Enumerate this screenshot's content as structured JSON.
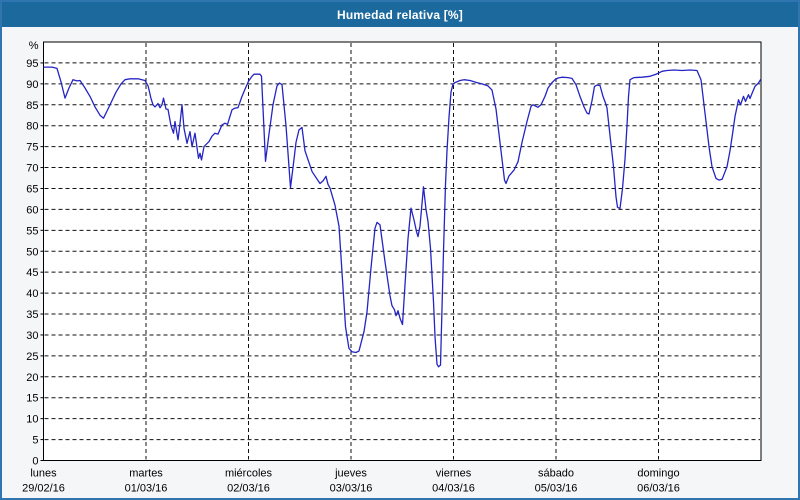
{
  "window": {
    "title": "Humedad relativa [%]"
  },
  "colors": {
    "header_bg": "#1c699e",
    "frame": "#2f75b0",
    "content_bg": "#f5f6f8",
    "plot_bg": "#ffffff",
    "grid": "#111111",
    "axis": "#000000",
    "line": "#2424c4"
  },
  "chart_data": {
    "type": "line",
    "title": "Humedad relativa [%]",
    "grid": "dashed",
    "legend": "none",
    "y_axis": {
      "unit_label": "%",
      "min": 0,
      "max": 100,
      "tick_step": 5,
      "ticks": [
        0,
        5,
        10,
        15,
        20,
        25,
        30,
        35,
        40,
        45,
        50,
        55,
        60,
        65,
        70,
        75,
        80,
        85,
        90,
        95
      ]
    },
    "x_axis": {
      "min": 0,
      "max": 7,
      "days": [
        {
          "name": "lunes",
          "date": "29/02/16"
        },
        {
          "name": "martes",
          "date": "01/03/16"
        },
        {
          "name": "miércoles",
          "date": "02/03/16"
        },
        {
          "name": "jueves",
          "date": "03/03/16"
        },
        {
          "name": "viernes",
          "date": "04/03/16"
        },
        {
          "name": "sábado",
          "date": "05/03/16"
        },
        {
          "name": "domingo",
          "date": "06/03/16"
        }
      ]
    },
    "series": [
      {
        "name": "Humedad relativa",
        "color": "#2424c4",
        "points": [
          [
            0.005,
            94
          ],
          [
            0.083,
            94
          ],
          [
            0.132,
            93.7
          ],
          [
            0.171,
            90.5
          ],
          [
            0.21,
            86.6
          ],
          [
            0.249,
            89
          ],
          [
            0.288,
            91
          ],
          [
            0.327,
            90.7
          ],
          [
            0.356,
            90.8
          ],
          [
            0.405,
            89
          ],
          [
            0.454,
            87
          ],
          [
            0.502,
            84.5
          ],
          [
            0.551,
            82.5
          ],
          [
            0.585,
            81.8
          ],
          [
            0.629,
            84
          ],
          [
            0.668,
            86
          ],
          [
            0.707,
            88
          ],
          [
            0.756,
            90
          ],
          [
            0.795,
            91
          ],
          [
            0.844,
            91.2
          ],
          [
            0.922,
            91.2
          ],
          [
            0.99,
            90.8
          ],
          [
            1.02,
            89.5
          ],
          [
            1.049,
            86.5
          ],
          [
            1.068,
            85
          ],
          [
            1.088,
            84.5
          ],
          [
            1.117,
            85.3
          ],
          [
            1.137,
            84.3
          ],
          [
            1.156,
            85
          ],
          [
            1.171,
            86.6
          ],
          [
            1.195,
            84
          ],
          [
            1.215,
            83.9
          ],
          [
            1.244,
            80
          ],
          [
            1.268,
            78.2
          ],
          [
            1.283,
            81
          ],
          [
            1.312,
            76.6
          ],
          [
            1.332,
            80.5
          ],
          [
            1.351,
            85
          ],
          [
            1.371,
            79.4
          ],
          [
            1.4,
            75.8
          ],
          [
            1.429,
            78.6
          ],
          [
            1.449,
            75
          ],
          [
            1.478,
            78.2
          ],
          [
            1.512,
            72.2
          ],
          [
            1.527,
            73.4
          ],
          [
            1.541,
            71.8
          ],
          [
            1.566,
            75
          ],
          [
            1.615,
            76.2
          ],
          [
            1.644,
            77.5
          ],
          [
            1.673,
            78.2
          ],
          [
            1.702,
            78
          ],
          [
            1.741,
            80.2
          ],
          [
            1.771,
            80.6
          ],
          [
            1.795,
            80.3
          ],
          [
            1.839,
            83.8
          ],
          [
            1.868,
            84.2
          ],
          [
            1.898,
            84.3
          ],
          [
            1.937,
            87
          ],
          [
            1.971,
            89
          ],
          [
            2.0,
            90.6
          ],
          [
            2.034,
            91.8
          ],
          [
            2.054,
            92.3
          ],
          [
            2.112,
            92.3
          ],
          [
            2.127,
            91.8
          ],
          [
            2.166,
            71.5
          ],
          [
            2.2,
            78
          ],
          [
            2.239,
            85
          ],
          [
            2.278,
            89.5
          ],
          [
            2.302,
            90.2
          ],
          [
            2.327,
            89.8
          ],
          [
            2.366,
            80
          ],
          [
            2.41,
            65.2
          ],
          [
            2.434,
            70
          ],
          [
            2.463,
            76
          ],
          [
            2.493,
            79
          ],
          [
            2.522,
            79.6
          ],
          [
            2.551,
            74
          ],
          [
            2.62,
            69
          ],
          [
            2.698,
            66.2
          ],
          [
            2.727,
            66.8
          ],
          [
            2.756,
            67.9
          ],
          [
            2.776,
            66
          ],
          [
            2.795,
            65.1
          ],
          [
            2.844,
            61
          ],
          [
            2.883,
            56
          ],
          [
            2.912,
            45
          ],
          [
            2.946,
            32
          ],
          [
            2.98,
            26.8
          ],
          [
            3.01,
            26
          ],
          [
            3.049,
            25.8
          ],
          [
            3.078,
            26.2
          ],
          [
            3.127,
            30.8
          ],
          [
            3.156,
            35.5
          ],
          [
            3.195,
            46
          ],
          [
            3.234,
            55.5
          ],
          [
            3.254,
            56.9
          ],
          [
            3.283,
            56.3
          ],
          [
            3.332,
            47.5
          ],
          [
            3.38,
            39.5
          ],
          [
            3.4,
            37
          ],
          [
            3.424,
            36
          ],
          [
            3.439,
            34.6
          ],
          [
            3.459,
            35.8
          ],
          [
            3.478,
            34
          ],
          [
            3.502,
            32.5
          ],
          [
            3.527,
            42
          ],
          [
            3.556,
            53
          ],
          [
            3.585,
            60.3
          ],
          [
            3.615,
            57.5
          ],
          [
            3.639,
            54.7
          ],
          [
            3.654,
            53.5
          ],
          [
            3.673,
            56
          ],
          [
            3.707,
            65.4
          ],
          [
            3.732,
            60
          ],
          [
            3.751,
            57.1
          ],
          [
            3.776,
            50.7
          ],
          [
            3.805,
            37.9
          ],
          [
            3.82,
            29.2
          ],
          [
            3.839,
            23
          ],
          [
            3.854,
            22.4
          ],
          [
            3.873,
            22.8
          ],
          [
            3.902,
            50
          ],
          [
            3.922,
            66
          ],
          [
            3.937,
            74
          ],
          [
            3.956,
            82
          ],
          [
            3.976,
            88
          ],
          [
            3.995,
            90
          ],
          [
            4.015,
            90.3
          ],
          [
            4.063,
            90.8
          ],
          [
            4.102,
            91
          ],
          [
            4.161,
            90.8
          ],
          [
            4.229,
            90.3
          ],
          [
            4.278,
            90
          ],
          [
            4.337,
            89.5
          ],
          [
            4.376,
            88.5
          ],
          [
            4.415,
            84
          ],
          [
            4.444,
            78
          ],
          [
            4.473,
            72
          ],
          [
            4.498,
            67
          ],
          [
            4.512,
            66.2
          ],
          [
            4.541,
            68
          ],
          [
            4.59,
            69.4
          ],
          [
            4.629,
            71.4
          ],
          [
            4.668,
            76
          ],
          [
            4.717,
            81
          ],
          [
            4.756,
            84.6
          ],
          [
            4.776,
            85
          ],
          [
            4.824,
            84.4
          ],
          [
            4.854,
            85
          ],
          [
            4.893,
            87
          ],
          [
            4.922,
            89
          ],
          [
            4.961,
            90.3
          ],
          [
            4.99,
            91
          ],
          [
            5.02,
            91.4
          ],
          [
            5.059,
            91.6
          ],
          [
            5.117,
            91.5
          ],
          [
            5.156,
            91.3
          ],
          [
            5.195,
            89.8
          ],
          [
            5.234,
            87
          ],
          [
            5.273,
            84.5
          ],
          [
            5.302,
            83
          ],
          [
            5.322,
            82.8
          ],
          [
            5.351,
            86
          ],
          [
            5.376,
            89.4
          ],
          [
            5.4,
            89.7
          ],
          [
            5.429,
            89.6
          ],
          [
            5.459,
            87
          ],
          [
            5.483,
            85.4
          ],
          [
            5.498,
            84.2
          ],
          [
            5.532,
            76.6
          ],
          [
            5.561,
            70.2
          ],
          [
            5.585,
            63
          ],
          [
            5.6,
            60.5
          ],
          [
            5.624,
            60.2
          ],
          [
            5.649,
            65
          ],
          [
            5.673,
            72
          ],
          [
            5.693,
            80
          ],
          [
            5.707,
            87
          ],
          [
            5.722,
            91
          ],
          [
            5.761,
            91.5
          ],
          [
            5.839,
            91.6
          ],
          [
            5.917,
            91.8
          ],
          [
            5.966,
            92.2
          ],
          [
            5.995,
            92.5
          ],
          [
            6.034,
            93
          ],
          [
            6.083,
            93.2
          ],
          [
            6.151,
            93.3
          ],
          [
            6.229,
            93.2
          ],
          [
            6.307,
            93.3
          ],
          [
            6.376,
            93.2
          ],
          [
            6.415,
            91
          ],
          [
            6.444,
            85
          ],
          [
            6.468,
            80
          ],
          [
            6.493,
            75
          ],
          [
            6.522,
            70.2
          ],
          [
            6.561,
            67.4
          ],
          [
            6.59,
            67
          ],
          [
            6.62,
            67.2
          ],
          [
            6.668,
            70.2
          ],
          [
            6.698,
            74
          ],
          [
            6.722,
            78
          ],
          [
            6.746,
            82.2
          ],
          [
            6.78,
            86.2
          ],
          [
            6.8,
            85
          ],
          [
            6.829,
            87
          ],
          [
            6.849,
            85.8
          ],
          [
            6.878,
            87.4
          ],
          [
            6.893,
            86.5
          ],
          [
            6.917,
            88
          ],
          [
            6.941,
            89.4
          ],
          [
            6.976,
            90.2
          ],
          [
            6.995,
            91
          ]
        ]
      }
    ]
  }
}
